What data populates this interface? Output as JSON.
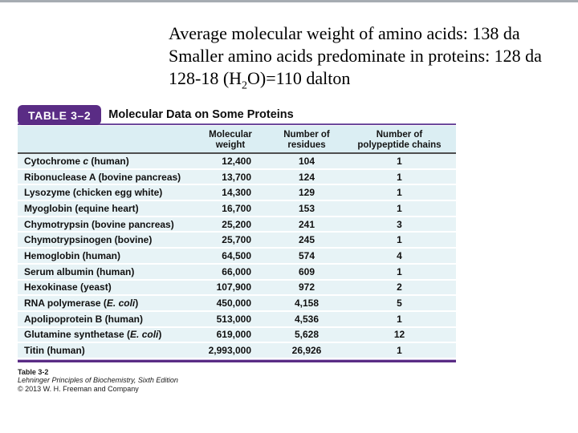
{
  "annotation": {
    "lines": [
      {
        "pre": "Average molecular weight of amino acids: 138 da",
        "sub": "",
        "post": ""
      },
      {
        "pre": "Smaller amino acids predominate in proteins: 128 da",
        "sub": "",
        "post": ""
      },
      {
        "pre": "128-18 (H",
        "sub": "2",
        "post": "O)=110 dalton"
      }
    ]
  },
  "table": {
    "badge_label": "TABLE 3–2",
    "title": "Molecular Data on Some Proteins",
    "columns": [
      {
        "line1": "Molecular",
        "line2": "weight"
      },
      {
        "line1": "Number of",
        "line2": "residues"
      },
      {
        "line1": "Number of",
        "line2": "polypeptide chains"
      }
    ],
    "rows": [
      {
        "pre": "Cytochrome ",
        "italic": "c",
        "post": " (human)",
        "mw": "12,400",
        "residues": "104",
        "chains": "1"
      },
      {
        "pre": "Ribonuclease A (bovine pancreas)",
        "italic": "",
        "post": "",
        "mw": "13,700",
        "residues": "124",
        "chains": "1"
      },
      {
        "pre": "Lysozyme (chicken egg white)",
        "italic": "",
        "post": "",
        "mw": "14,300",
        "residues": "129",
        "chains": "1"
      },
      {
        "pre": "Myoglobin (equine heart)",
        "italic": "",
        "post": "",
        "mw": "16,700",
        "residues": "153",
        "chains": "1"
      },
      {
        "pre": "Chymotrypsin (bovine pancreas)",
        "italic": "",
        "post": "",
        "mw": "25,200",
        "residues": "241",
        "chains": "3"
      },
      {
        "pre": "Chymotrypsinogen (bovine)",
        "italic": "",
        "post": "",
        "mw": "25,700",
        "residues": "245",
        "chains": "1"
      },
      {
        "pre": "Hemoglobin (human)",
        "italic": "",
        "post": "",
        "mw": "64,500",
        "residues": "574",
        "chains": "4"
      },
      {
        "pre": "Serum albumin (human)",
        "italic": "",
        "post": "",
        "mw": "66,000",
        "residues": "609",
        "chains": "1"
      },
      {
        "pre": "Hexokinase (yeast)",
        "italic": "",
        "post": "",
        "mw": "107,900",
        "residues": "972",
        "chains": "2"
      },
      {
        "pre": "RNA polymerase (",
        "italic": "E. coli",
        "post": ")",
        "mw": "450,000",
        "residues": "4,158",
        "chains": "5"
      },
      {
        "pre": "Apolipoprotein B (human)",
        "italic": "",
        "post": "",
        "mw": "513,000",
        "residues": "4,536",
        "chains": "1"
      },
      {
        "pre": "Glutamine synthetase (",
        "italic": "E. coli",
        "post": ")",
        "mw": "619,000",
        "residues": "5,628",
        "chains": "12"
      },
      {
        "pre": "Titin (human)",
        "italic": "",
        "post": "",
        "mw": "2,993,000",
        "residues": "26,926",
        "chains": "1"
      }
    ],
    "colors": {
      "accent_purple": "#5a2c85",
      "title_rule_purple": "#6b4a9c",
      "header_band_blue": "#dbeef3",
      "row_band_blue": "#e7f3f6",
      "header_rule_gray": "#4f4f4f",
      "top_edge_gray": "#a6acb2"
    }
  },
  "footer": {
    "label": "Table 3-2",
    "source": "Lehninger Principles of Biochemistry, Sixth Edition",
    "copyright": "© 2013 W. H. Freeman and Company"
  }
}
